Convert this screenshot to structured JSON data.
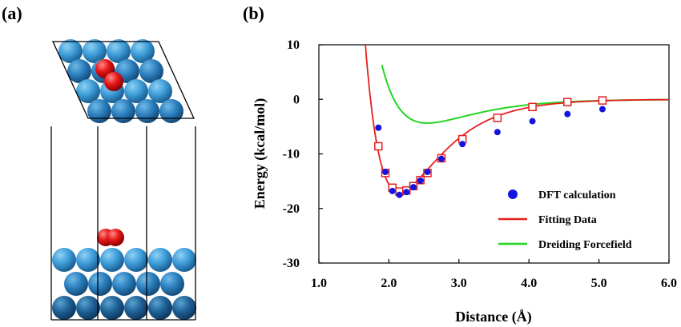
{
  "panels": {
    "a": {
      "label": "(a)"
    },
    "b": {
      "label": "(b)"
    }
  },
  "colors": {
    "atom_light": "#3a9ad6",
    "atom_mid": "#2a7dbd",
    "atom_dark": "#1d5f94",
    "oxygen": "#e81818",
    "dft": "#1414e0",
    "fit": "#e61e1e",
    "dreiding": "#22d622"
  },
  "chart_data": {
    "type": "scatter",
    "xlabel": "Distance (Å)",
    "ylabel": "Energy (kcal/mol)",
    "xlim": [
      1.0,
      6.0
    ],
    "ylim": [
      -30,
      10
    ],
    "xticks": [
      "1.0",
      "2.0",
      "3.0",
      "4.0",
      "5.0",
      "6.0"
    ],
    "yticks": [
      "10",
      "0",
      "-10",
      "-20",
      "-30"
    ],
    "grid": false,
    "legend_position": "bottom-right",
    "series": [
      {
        "name": "DFT calculation",
        "kind": "points",
        "color": "#1414e0",
        "x": [
          1.85,
          1.95,
          2.05,
          2.15,
          2.25,
          2.35,
          2.45,
          2.55,
          2.75,
          3.05,
          3.55,
          4.05,
          4.55,
          5.05
        ],
        "y": [
          -5.2,
          -13.3,
          -16.8,
          -17.5,
          -17.0,
          -16.1,
          -14.9,
          -13.3,
          -10.9,
          -8.2,
          -6.0,
          -4.0,
          -2.7,
          -1.8
        ]
      },
      {
        "name": "Fitting Data",
        "kind": "line_with_square_markers",
        "color": "#e61e1e",
        "curve": {
          "D": 16.95,
          "a": 1.68,
          "r0": 2.15
        },
        "x": [
          1.85,
          1.95,
          2.05,
          2.15,
          2.25,
          2.35,
          2.45,
          2.55,
          2.75,
          3.05,
          3.55,
          4.05,
          4.55,
          5.05
        ],
        "y": [
          -8.6,
          -13.5,
          -16.2,
          -16.9,
          -16.7,
          -15.9,
          -14.8,
          -13.5,
          -10.8,
          -7.3,
          -3.4,
          -1.4,
          -0.5,
          -0.2
        ]
      },
      {
        "name": "Dreiding Forcefield",
        "kind": "line",
        "color": "#22d622",
        "curve": {
          "D": 4.35,
          "a": 1.45,
          "r0": 2.55
        }
      }
    ]
  }
}
